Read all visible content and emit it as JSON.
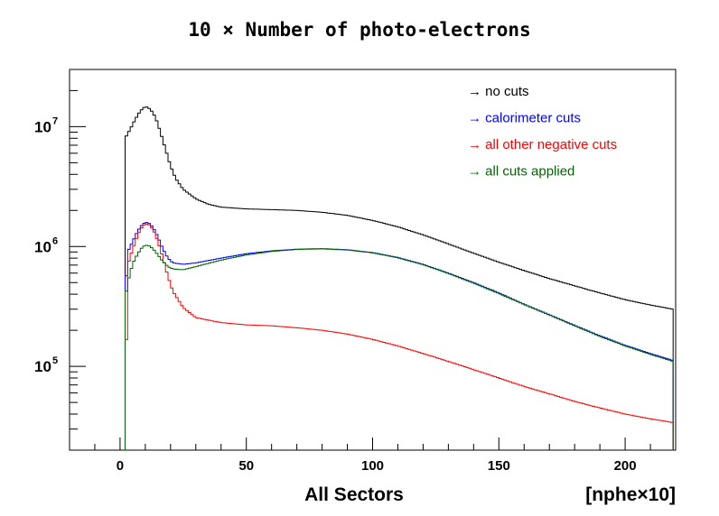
{
  "chart_data": {
    "type": "line",
    "title": "10 × Number of photo-electrons",
    "xlabel_left": "All Sectors",
    "xlabel_right": "[nphe×10]",
    "xlim": [
      -20,
      220
    ],
    "ylim": [
      20000,
      30000000
    ],
    "yscale": "log",
    "x_ticks": [
      0,
      50,
      100,
      150,
      200
    ],
    "y_ticks": [
      {
        "value": 100000,
        "base": "10",
        "exp": "5"
      },
      {
        "value": 1000000,
        "base": "10",
        "exp": "6"
      },
      {
        "value": 10000000,
        "base": "10",
        "exp": "7"
      }
    ],
    "legend_position": "top-right",
    "series": [
      {
        "name": "no cuts",
        "legend": "→ no cuts",
        "color": "#000000",
        "points": [
          [
            2,
            8000000
          ],
          [
            4,
            9500000
          ],
          [
            6,
            11500000
          ],
          [
            8,
            13500000
          ],
          [
            10,
            14800000
          ],
          [
            12,
            14000000
          ],
          [
            14,
            12000000
          ],
          [
            16,
            9000000
          ],
          [
            18,
            6500000
          ],
          [
            20,
            4700000
          ],
          [
            22,
            3700000
          ],
          [
            25,
            3000000
          ],
          [
            30,
            2500000
          ],
          [
            35,
            2250000
          ],
          [
            40,
            2130000
          ],
          [
            50,
            2060000
          ],
          [
            60,
            2030000
          ],
          [
            70,
            2000000
          ],
          [
            80,
            1930000
          ],
          [
            90,
            1820000
          ],
          [
            100,
            1650000
          ],
          [
            110,
            1460000
          ],
          [
            120,
            1250000
          ],
          [
            130,
            1050000
          ],
          [
            140,
            880000
          ],
          [
            150,
            740000
          ],
          [
            160,
            630000
          ],
          [
            170,
            540000
          ],
          [
            180,
            470000
          ],
          [
            190,
            410000
          ],
          [
            200,
            360000
          ],
          [
            210,
            325000
          ],
          [
            219,
            300000
          ]
        ]
      },
      {
        "name": "calorimeter cuts",
        "legend": "→ calorimeter cuts",
        "color": "#0000ff",
        "points": [
          [
            2,
            360000
          ],
          [
            3,
            900000
          ],
          [
            5,
            1100000
          ],
          [
            7,
            1350000
          ],
          [
            9,
            1550000
          ],
          [
            11,
            1600000
          ],
          [
            13,
            1450000
          ],
          [
            15,
            1200000
          ],
          [
            17,
            950000
          ],
          [
            19,
            800000
          ],
          [
            21,
            730000
          ],
          [
            25,
            710000
          ],
          [
            30,
            730000
          ],
          [
            40,
            800000
          ],
          [
            50,
            870000
          ],
          [
            60,
            920000
          ],
          [
            70,
            950000
          ],
          [
            80,
            960000
          ],
          [
            90,
            940000
          ],
          [
            100,
            890000
          ],
          [
            110,
            810000
          ],
          [
            120,
            710000
          ],
          [
            130,
            600000
          ],
          [
            140,
            500000
          ],
          [
            150,
            410000
          ],
          [
            160,
            330000
          ],
          [
            170,
            270000
          ],
          [
            180,
            220000
          ],
          [
            190,
            180000
          ],
          [
            200,
            150000
          ],
          [
            210,
            128000
          ],
          [
            219,
            112000
          ]
        ]
      },
      {
        "name": "all other negative cuts",
        "legend": "→ all other negative cuts",
        "color": "#ff0000",
        "points": [
          [
            2,
            40000
          ],
          [
            3,
            700000
          ],
          [
            5,
            950000
          ],
          [
            7,
            1250000
          ],
          [
            9,
            1500000
          ],
          [
            11,
            1550000
          ],
          [
            13,
            1400000
          ],
          [
            15,
            1100000
          ],
          [
            17,
            800000
          ],
          [
            19,
            560000
          ],
          [
            21,
            420000
          ],
          [
            25,
            310000
          ],
          [
            30,
            255000
          ],
          [
            40,
            232000
          ],
          [
            50,
            222000
          ],
          [
            60,
            218000
          ],
          [
            70,
            210000
          ],
          [
            80,
            200000
          ],
          [
            90,
            186000
          ],
          [
            100,
            168000
          ],
          [
            110,
            148000
          ],
          [
            120,
            128000
          ],
          [
            130,
            110000
          ],
          [
            140,
            94000
          ],
          [
            150,
            80000
          ],
          [
            160,
            68000
          ],
          [
            170,
            59000
          ],
          [
            180,
            51000
          ],
          [
            190,
            45000
          ],
          [
            200,
            40000
          ],
          [
            210,
            36500
          ],
          [
            219,
            34000
          ]
        ]
      },
      {
        "name": "all cuts applied",
        "legend": "→ all cuts applied",
        "color": "#006400",
        "points": [
          [
            2,
            360000
          ],
          [
            3,
            500000
          ],
          [
            5,
            720000
          ],
          [
            7,
            870000
          ],
          [
            9,
            1000000
          ],
          [
            11,
            1030000
          ],
          [
            13,
            960000
          ],
          [
            15,
            850000
          ],
          [
            17,
            750000
          ],
          [
            19,
            680000
          ],
          [
            21,
            650000
          ],
          [
            25,
            640000
          ],
          [
            30,
            680000
          ],
          [
            40,
            770000
          ],
          [
            50,
            850000
          ],
          [
            60,
            910000
          ],
          [
            70,
            945000
          ],
          [
            80,
            955000
          ],
          [
            90,
            935000
          ],
          [
            100,
            885000
          ],
          [
            110,
            805000
          ],
          [
            120,
            705000
          ],
          [
            130,
            595000
          ],
          [
            140,
            495000
          ],
          [
            150,
            405000
          ],
          [
            160,
            328000
          ],
          [
            170,
            268000
          ],
          [
            180,
            218000
          ],
          [
            190,
            178000
          ],
          [
            200,
            148000
          ],
          [
            210,
            126000
          ],
          [
            219,
            110000
          ]
        ]
      }
    ]
  }
}
